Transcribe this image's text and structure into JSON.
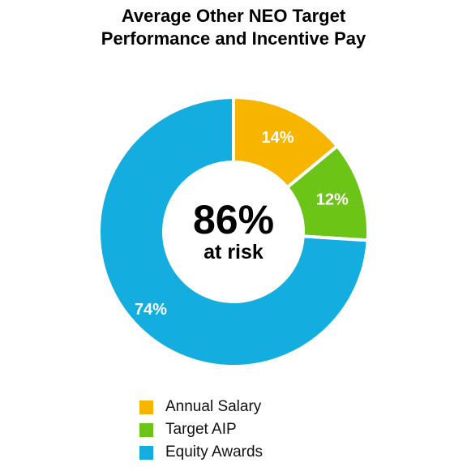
{
  "chart_data": {
    "type": "pie",
    "variant": "donut",
    "title_lines": [
      "Average Other NEO Target",
      "Performance and Incentive Pay"
    ],
    "center_value": "86%",
    "center_label": "at risk",
    "slices": [
      {
        "label": "Annual Salary",
        "value": 14,
        "display": "14%",
        "color": "#F7B500"
      },
      {
        "label": "Target AIP",
        "value": 12,
        "display": "12%",
        "color": "#6CC417"
      },
      {
        "label": "Equity Awards",
        "value": 74,
        "display": "74%",
        "color": "#13AEDF"
      }
    ],
    "legend_position": "bottom"
  }
}
